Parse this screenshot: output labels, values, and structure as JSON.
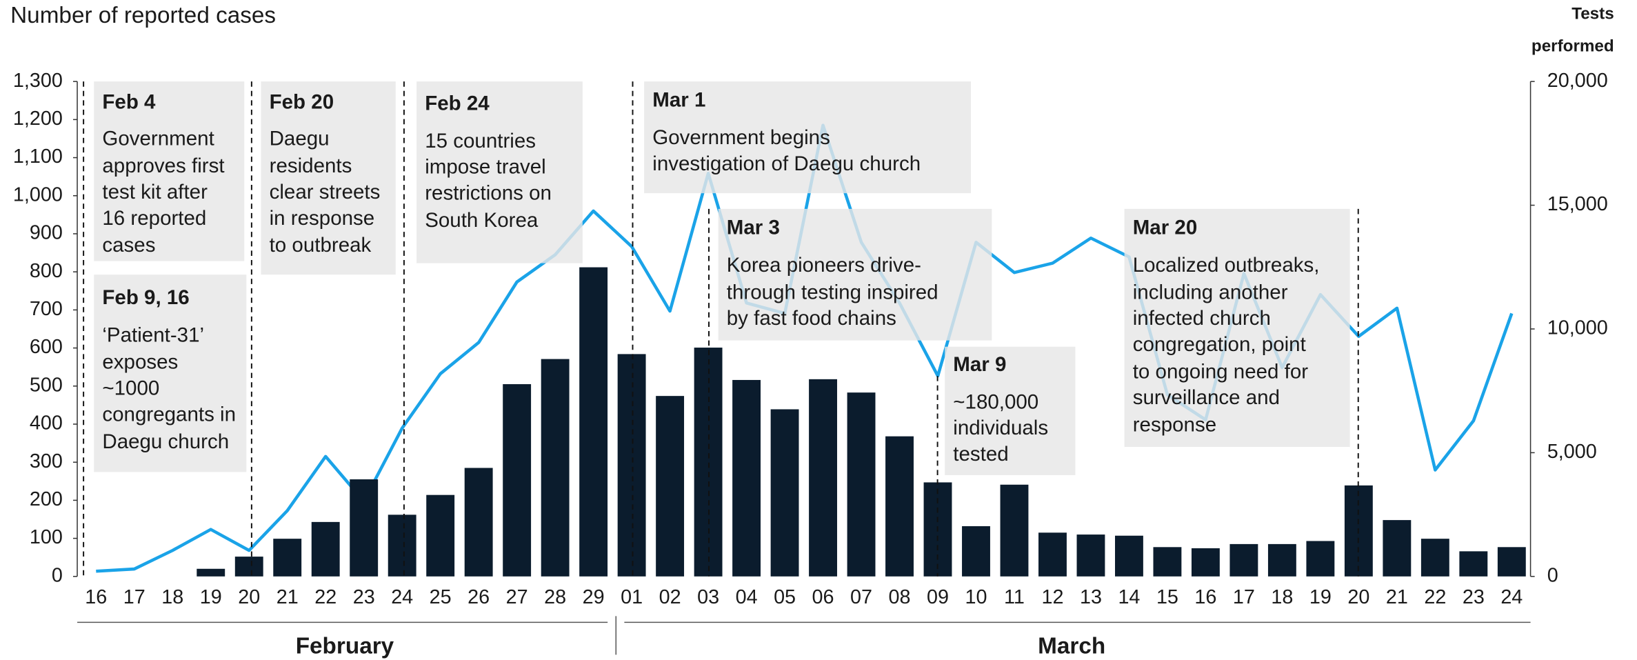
{
  "chart_data": {
    "type": "bar_line",
    "y_label": "Number of reported cases",
    "y2_label": [
      "Tests",
      "performed"
    ],
    "categories": [
      "16",
      "17",
      "18",
      "19",
      "20",
      "21",
      "22",
      "23",
      "24",
      "25",
      "26",
      "27",
      "28",
      "29",
      "01",
      "02",
      "03",
      "04",
      "05",
      "06",
      "07",
      "08",
      "09",
      "10",
      "11",
      "12",
      "13",
      "14",
      "15",
      "16",
      "17",
      "18",
      "19",
      "20",
      "21",
      "22",
      "23",
      "24"
    ],
    "groups": [
      {
        "name": "February",
        "from": 0,
        "to": 13
      },
      {
        "name": "March",
        "from": 14,
        "to": 37
      }
    ],
    "series": [
      {
        "name": "Reported cases",
        "type": "bar",
        "color": "#0b1c2d",
        "axis": "y",
        "values": [
          0,
          0,
          0,
          20,
          52,
          99,
          143,
          255,
          162,
          214,
          285,
          505,
          571,
          812,
          584,
          474,
          601,
          516,
          439,
          518,
          483,
          368,
          247,
          132,
          241,
          115,
          110,
          107,
          77,
          74,
          85,
          85,
          93,
          239,
          148,
          99,
          66,
          77
        ]
      },
      {
        "name": "Tests performed",
        "type": "line",
        "color": "#1aa3e8",
        "axis": "y2",
        "values": [
          210,
          300,
          1050,
          1900,
          1050,
          2660,
          4850,
          3040,
          5990,
          8190,
          9450,
          11900,
          13000,
          14770,
          13330,
          10720,
          16290,
          11050,
          10630,
          18230,
          13500,
          11050,
          8100,
          13500,
          12280,
          12660,
          13670,
          12910,
          7340,
          6330,
          12240,
          8440,
          11390,
          9700,
          10840,
          4300,
          6290,
          10630
        ]
      }
    ],
    "ylim": [
      0,
      1300
    ],
    "yticks": [
      0,
      100,
      200,
      300,
      400,
      500,
      600,
      700,
      800,
      900,
      {
        "value": 1000,
        "label": "1,000"
      },
      {
        "value": 1100,
        "label": "1,100"
      },
      {
        "value": 1200,
        "label": "1,200"
      },
      {
        "value": 1300,
        "label": "1,300"
      }
    ],
    "y2lim": [
      0,
      20000
    ],
    "y2ticks": [
      0,
      {
        "value": 5000,
        "label": "5,000"
      },
      {
        "value": 10000,
        "label": "10,000"
      },
      {
        "value": 15000,
        "label": "15,000"
      },
      {
        "value": 20000,
        "label": "20,000"
      }
    ],
    "annotations": [
      {
        "title": "Feb 4",
        "lines": [
          "Government",
          "approves first",
          "test kit after",
          "16 reported",
          "cases"
        ]
      },
      {
        "title": "Feb 9, 16",
        "lines": [
          "‘Patient-31’",
          "exposes",
          "~1000",
          "congregants in",
          "Daegu church"
        ]
      },
      {
        "title": "Feb 20",
        "lines": [
          "Daegu",
          "residents",
          "clear streets",
          "in response",
          "to outbreak"
        ]
      },
      {
        "title": "Feb 24",
        "lines": [
          "15 countries",
          "impose travel",
          "restrictions on",
          "South Korea"
        ]
      },
      {
        "title": "Mar 1",
        "lines": [
          "Government begins",
          "investigation of Daegu church"
        ]
      },
      {
        "title": "Mar 3",
        "lines": [
          "Korea pioneers drive-",
          "through testing inspired",
          "by fast food chains"
        ]
      },
      {
        "title": "Mar 9",
        "lines": [
          "~180,000",
          "individuals",
          "tested"
        ]
      },
      {
        "title": "Mar 20",
        "lines": [
          "Localized outbreaks,",
          "including another",
          "infected church",
          "congregation, point",
          "to ongoing need for",
          "surveillance and",
          "response"
        ]
      }
    ]
  }
}
